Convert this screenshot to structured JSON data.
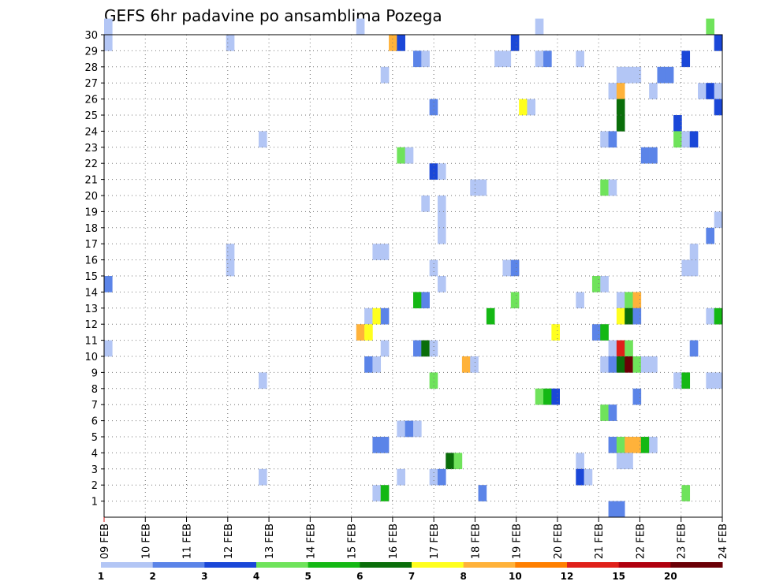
{
  "chart_data": {
    "type": "heatmap",
    "title": "GEFS 6hr padavine po ansamblima Pozega",
    "x_tick_labels": [
      "09 FEB",
      "10 FEB",
      "11 FEB",
      "12 FEB",
      "13 FEB",
      "14 FEB",
      "15 FEB",
      "16 FEB",
      "17 FEB",
      "18 FEB",
      "19 FEB",
      "20 FEB",
      "21 FEB",
      "22 FEB",
      "23 FEB",
      "24 FEB"
    ],
    "x_range": [
      "09 FEB 00Z",
      "24 FEB 00Z"
    ],
    "y_tick_labels": [
      "1",
      "2",
      "3",
      "4",
      "5",
      "6",
      "7",
      "8",
      "9",
      "10",
      "11",
      "12",
      "13",
      "14",
      "15",
      "16",
      "17",
      "18",
      "19",
      "20",
      "21",
      "22",
      "23",
      "24",
      "25",
      "26",
      "27",
      "28",
      "29",
      "30"
    ],
    "y_range": [
      0,
      30
    ],
    "grid": true,
    "colorbar": {
      "placement": "bottom",
      "labels": [
        "1",
        "2",
        "3",
        "4",
        "5",
        "6",
        "7",
        "8",
        "10",
        "12",
        "15",
        "20"
      ],
      "colors": [
        "#b3c6f5",
        "#5b84e8",
        "#1a47d8",
        "#6fe35b",
        "#14b814",
        "#0a6e0a",
        "#ffff1e",
        "#ffb23a",
        "#ff7f00",
        "#e0201a",
        "#b0000e",
        "#6b0006"
      ]
    },
    "cells": [
      [
        30,
        0,
        0
      ],
      [
        30,
        31,
        0
      ],
      [
        30,
        53,
        0
      ],
      [
        30,
        74,
        3
      ],
      [
        29,
        0,
        0
      ],
      [
        29,
        15,
        0
      ],
      [
        29,
        35,
        7
      ],
      [
        29,
        36,
        2
      ],
      [
        29,
        50,
        2
      ],
      [
        29,
        75,
        2
      ],
      [
        28,
        38,
        1
      ],
      [
        28,
        39,
        0
      ],
      [
        28,
        48,
        0
      ],
      [
        28,
        49,
        0
      ],
      [
        28,
        53,
        0
      ],
      [
        28,
        54,
        1
      ],
      [
        28,
        58,
        0
      ],
      [
        28,
        71,
        2
      ],
      [
        27,
        34,
        0
      ],
      [
        27,
        63,
        0
      ],
      [
        27,
        64,
        0
      ],
      [
        27,
        65,
        0
      ],
      [
        27,
        68,
        1
      ],
      [
        27,
        69,
        1
      ],
      [
        26,
        62,
        0
      ],
      [
        26,
        63,
        7
      ],
      [
        26,
        67,
        0
      ],
      [
        26,
        73,
        0
      ],
      [
        26,
        74,
        2
      ],
      [
        26,
        75,
        0
      ],
      [
        25,
        40,
        1
      ],
      [
        25,
        51,
        6
      ],
      [
        25,
        52,
        0
      ],
      [
        25,
        63,
        5
      ],
      [
        25,
        75,
        2
      ],
      [
        24,
        63,
        5
      ],
      [
        24,
        70,
        2
      ],
      [
        23,
        19,
        0
      ],
      [
        23,
        61,
        0
      ],
      [
        23,
        62,
        1
      ],
      [
        23,
        70,
        3
      ],
      [
        23,
        71,
        0
      ],
      [
        23,
        72,
        2
      ],
      [
        22,
        36,
        3
      ],
      [
        22,
        37,
        0
      ],
      [
        22,
        66,
        1
      ],
      [
        22,
        67,
        1
      ],
      [
        21,
        40,
        2
      ],
      [
        21,
        41,
        0
      ],
      [
        20,
        45,
        0
      ],
      [
        20,
        46,
        0
      ],
      [
        20,
        61,
        3
      ],
      [
        20,
        62,
        0
      ],
      [
        19,
        39,
        0
      ],
      [
        19,
        41,
        0
      ],
      [
        18,
        41,
        0
      ],
      [
        18,
        75,
        0
      ],
      [
        17,
        41,
        0
      ],
      [
        17,
        74,
        1
      ],
      [
        16,
        33,
        0
      ],
      [
        16,
        34,
        0
      ],
      [
        16,
        15,
        0
      ],
      [
        16,
        72,
        0
      ],
      [
        15,
        15,
        0
      ],
      [
        15,
        40,
        0
      ],
      [
        15,
        49,
        0
      ],
      [
        15,
        50,
        1
      ],
      [
        15,
        71,
        0
      ],
      [
        15,
        72,
        0
      ],
      [
        14,
        0,
        1
      ],
      [
        14,
        41,
        0
      ],
      [
        14,
        60,
        3
      ],
      [
        14,
        61,
        0
      ],
      [
        13,
        38,
        4
      ],
      [
        13,
        39,
        1
      ],
      [
        13,
        50,
        3
      ],
      [
        13,
        58,
        0
      ],
      [
        13,
        63,
        0
      ],
      [
        13,
        64,
        3
      ],
      [
        13,
        65,
        7
      ],
      [
        12,
        32,
        0
      ],
      [
        12,
        33,
        6
      ],
      [
        12,
        34,
        1
      ],
      [
        12,
        47,
        4
      ],
      [
        12,
        63,
        6
      ],
      [
        12,
        64,
        5
      ],
      [
        12,
        65,
        1
      ],
      [
        12,
        74,
        0
      ],
      [
        12,
        75,
        4
      ],
      [
        11,
        31,
        7
      ],
      [
        11,
        32,
        6
      ],
      [
        11,
        55,
        6
      ],
      [
        11,
        60,
        1
      ],
      [
        11,
        61,
        4
      ],
      [
        10,
        0,
        0
      ],
      [
        10,
        34,
        0
      ],
      [
        10,
        38,
        1
      ],
      [
        10,
        39,
        5
      ],
      [
        10,
        40,
        0
      ],
      [
        10,
        62,
        0
      ],
      [
        10,
        63,
        9
      ],
      [
        10,
        64,
        3
      ],
      [
        10,
        72,
        1
      ],
      [
        9,
        32,
        1
      ],
      [
        9,
        33,
        0
      ],
      [
        9,
        44,
        7
      ],
      [
        9,
        45,
        0
      ],
      [
        9,
        61,
        0
      ],
      [
        9,
        62,
        1
      ],
      [
        9,
        63,
        5
      ],
      [
        9,
        64,
        11
      ],
      [
        9,
        65,
        3
      ],
      [
        9,
        66,
        0
      ],
      [
        9,
        67,
        0
      ],
      [
        8,
        19,
        0
      ],
      [
        8,
        40,
        3
      ],
      [
        8,
        70,
        0
      ],
      [
        8,
        71,
        4
      ],
      [
        8,
        74,
        0
      ],
      [
        8,
        75,
        0
      ],
      [
        7,
        53,
        3
      ],
      [
        7,
        54,
        4
      ],
      [
        7,
        55,
        2
      ],
      [
        7,
        65,
        1
      ],
      [
        6,
        61,
        3
      ],
      [
        6,
        62,
        1
      ],
      [
        5,
        36,
        0
      ],
      [
        5,
        37,
        1
      ],
      [
        5,
        38,
        0
      ],
      [
        4,
        33,
        1
      ],
      [
        4,
        34,
        1
      ],
      [
        4,
        62,
        1
      ],
      [
        4,
        63,
        3
      ],
      [
        4,
        64,
        7
      ],
      [
        4,
        65,
        7
      ],
      [
        4,
        66,
        4
      ],
      [
        4,
        67,
        0
      ],
      [
        3,
        42,
        5
      ],
      [
        3,
        43,
        3
      ],
      [
        3,
        58,
        0
      ],
      [
        3,
        63,
        0
      ],
      [
        3,
        64,
        0
      ],
      [
        2,
        19,
        0
      ],
      [
        2,
        36,
        0
      ],
      [
        2,
        40,
        0
      ],
      [
        2,
        41,
        1
      ],
      [
        2,
        58,
        2
      ],
      [
        2,
        59,
        0
      ],
      [
        1,
        33,
        0
      ],
      [
        1,
        34,
        4
      ],
      [
        1,
        46,
        1
      ],
      [
        1,
        71,
        3
      ],
      [
        0,
        62,
        1
      ],
      [
        0,
        63,
        1
      ]
    ]
  }
}
